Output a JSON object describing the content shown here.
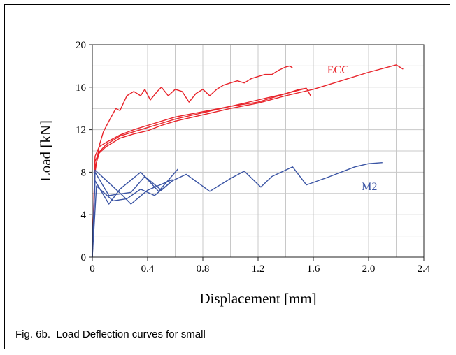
{
  "caption": "Fig. 6b.  Load Deflection curves for small",
  "chart_data": {
    "type": "line",
    "xlabel": "Displacement [mm]",
    "ylabel": "Load [kN]",
    "xlim": [
      0,
      2.4
    ],
    "ylim": [
      0,
      20
    ],
    "xticks": [
      "0",
      "0.4",
      "0.8",
      "1.2",
      "1.6",
      "2.0",
      "2.4"
    ],
    "yticks": [
      "0",
      "4",
      "8",
      "12",
      "16",
      "20"
    ],
    "grid": true,
    "labels": [
      {
        "text": "ECC",
        "x": 1.7,
        "y": 17.3,
        "color": "#e8242b"
      },
      {
        "text": "M2",
        "x": 1.95,
        "y": 6.3,
        "color": "#3a54a4"
      }
    ],
    "colors": {
      "ecc": "#e8242b",
      "m2": "#3a54a4"
    },
    "series": [
      {
        "group": "ECC",
        "color": "#e8242b",
        "x": [
          0,
          0.02,
          0.05,
          0.08,
          0.12,
          0.17,
          0.2,
          0.25,
          0.3,
          0.35,
          0.38,
          0.42,
          0.47,
          0.5,
          0.55,
          0.6,
          0.65,
          0.7,
          0.75,
          0.8,
          0.85,
          0.9,
          0.95,
          1.0,
          1.05,
          1.1,
          1.15,
          1.2,
          1.25,
          1.3,
          1.35,
          1.4,
          1.43,
          1.45
        ],
        "y": [
          0,
          8,
          10.5,
          11.8,
          12.8,
          14,
          13.8,
          15.2,
          15.6,
          15.2,
          15.8,
          14.8,
          15.6,
          16,
          15.2,
          15.8,
          15.6,
          14.6,
          15.4,
          15.8,
          15.2,
          15.8,
          16.2,
          16.4,
          16.6,
          16.4,
          16.8,
          17,
          17.2,
          17.2,
          17.6,
          17.9,
          18.0,
          17.8
        ]
      },
      {
        "group": "ECC",
        "color": "#e8242b",
        "x": [
          0,
          0.02,
          0.05,
          0.1,
          0.2,
          0.3,
          0.4,
          0.5,
          0.6,
          0.8,
          1.0,
          1.2,
          1.4,
          1.6,
          1.8,
          2.0,
          2.2,
          2.25
        ],
        "y": [
          0,
          8.5,
          9.8,
          10.4,
          11.2,
          11.6,
          11.9,
          12.4,
          12.8,
          13.4,
          14.0,
          14.5,
          15.2,
          15.8,
          16.6,
          17.4,
          18.1,
          17.7
        ]
      },
      {
        "group": "ECC",
        "color": "#e8242b",
        "x": [
          0,
          0.02,
          0.05,
          0.1,
          0.2,
          0.3,
          0.4,
          0.5,
          0.6,
          0.8,
          1.0,
          1.2,
          1.4,
          1.5,
          1.55,
          1.58
        ],
        "y": [
          0,
          9.5,
          10.4,
          10.8,
          11.5,
          12.0,
          12.4,
          12.8,
          13.2,
          13.7,
          14.2,
          14.6,
          15.4,
          15.8,
          15.9,
          15.2
        ]
      },
      {
        "group": "ECC",
        "color": "#e8242b",
        "x": [
          0,
          0.02,
          0.05,
          0.1,
          0.2,
          0.3,
          0.4,
          0.5,
          0.6,
          0.8,
          1.0,
          1.2,
          1.4,
          1.55
        ],
        "y": [
          0,
          9,
          9.9,
          10.6,
          11.4,
          11.8,
          12.2,
          12.6,
          13.0,
          13.6,
          14.2,
          14.8,
          15.4,
          15.9
        ]
      },
      {
        "group": "M2",
        "color": "#3a54a4",
        "x": [
          0,
          0.02,
          0.12,
          0.28,
          0.38,
          0.5,
          0.58,
          0.68,
          0.85,
          1.0,
          1.1,
          1.22,
          1.3,
          1.45,
          1.55,
          1.7,
          1.9,
          2.0,
          2.1
        ],
        "y": [
          0,
          8.0,
          5.8,
          6.1,
          7.6,
          6.3,
          7.2,
          7.8,
          6.2,
          7.4,
          8.1,
          6.6,
          7.6,
          8.5,
          6.8,
          7.5,
          8.5,
          8.8,
          8.9
        ]
      },
      {
        "group": "M2",
        "color": "#3a54a4",
        "x": [
          0,
          0.02,
          0.12,
          0.2,
          0.35,
          0.48,
          0.62
        ],
        "y": [
          0,
          7.2,
          5.0,
          6.4,
          8.0,
          6.2,
          8.3
        ]
      },
      {
        "group": "M2",
        "color": "#3a54a4",
        "x": [
          0,
          0.02,
          0.22,
          0.28,
          0.4,
          0.58
        ],
        "y": [
          0,
          8.2,
          5.8,
          5.0,
          6.3,
          7.3
        ]
      },
      {
        "group": "M2",
        "color": "#3a54a4",
        "x": [
          0,
          0.03,
          0.15,
          0.25,
          0.35,
          0.45,
          0.58
        ],
        "y": [
          0,
          6.7,
          5.3,
          5.5,
          6.4,
          5.8,
          7.2
        ]
      }
    ]
  }
}
